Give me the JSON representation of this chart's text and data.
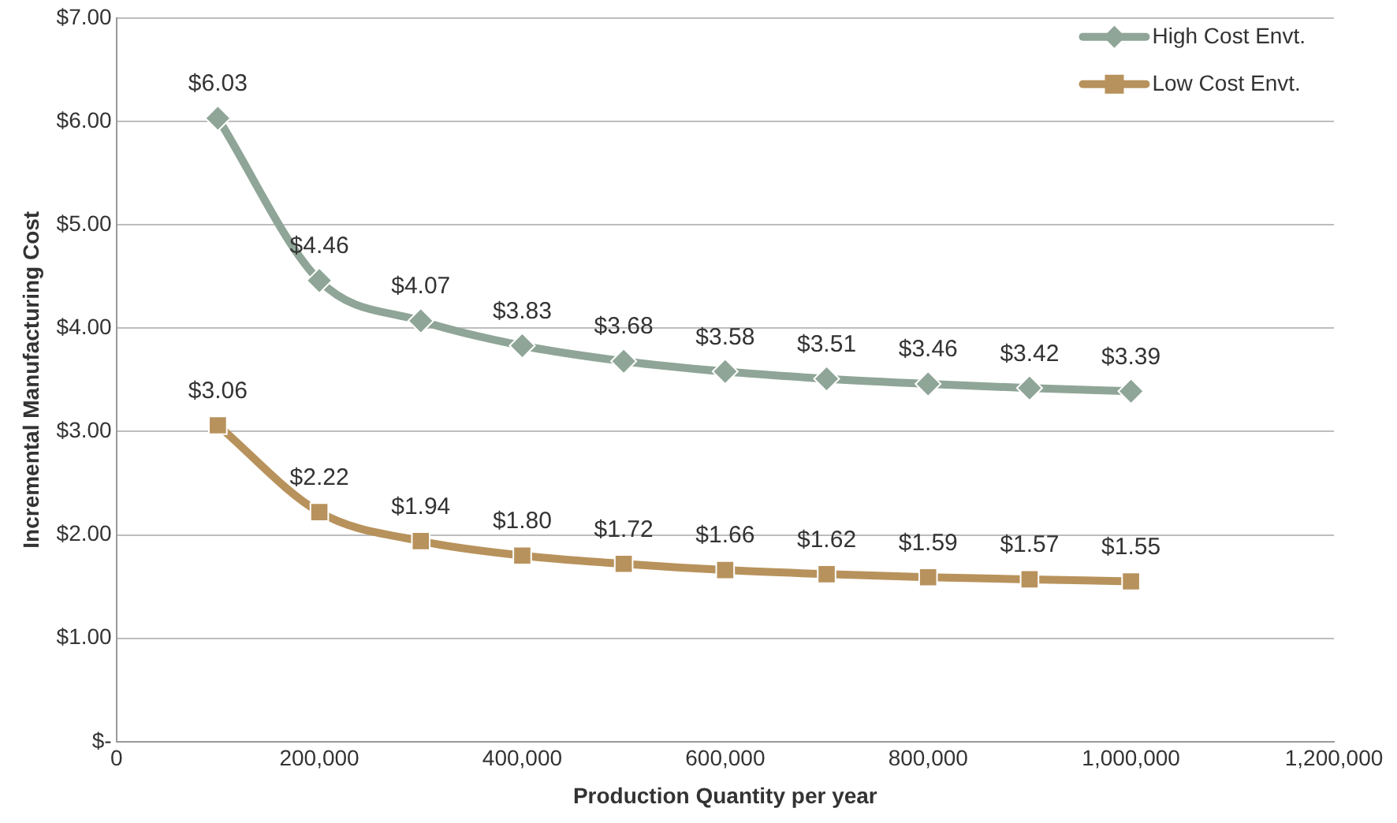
{
  "chart_data": {
    "type": "line",
    "xlabel": "Production Quantity per year",
    "ylabel": "Incremental Manufacturing Cost",
    "x": [
      100000,
      200000,
      300000,
      400000,
      500000,
      600000,
      700000,
      800000,
      900000,
      1000000
    ],
    "xlim": [
      0,
      1200000
    ],
    "xticks": [
      0,
      {
        "value": 200000,
        "label": "200,000"
      },
      {
        "value": 400000,
        "label": "400,000"
      },
      {
        "value": 600000,
        "label": "600,000"
      },
      {
        "value": 800000,
        "label": "800,000"
      },
      {
        "value": 1000000,
        "label": "1,000,000"
      },
      {
        "value": 1200000,
        "label": "1,200,000"
      }
    ],
    "ylim": [
      0,
      7
    ],
    "yticks": [
      {
        "value": 0,
        "label": "$-"
      },
      {
        "value": 1,
        "label": "$1.00"
      },
      {
        "value": 2,
        "label": "$2.00"
      },
      {
        "value": 3,
        "label": "$3.00"
      },
      {
        "value": 4,
        "label": "$4.00"
      },
      {
        "value": 5,
        "label": "$5.00"
      },
      {
        "value": 6,
        "label": "$6.00"
      },
      {
        "value": 7,
        "label": "$7.00"
      }
    ],
    "grid": "y",
    "legend": "top right",
    "line_style": "solid",
    "series": [
      {
        "name": "High Cost Envt.",
        "color": "#8fa597",
        "marker": "diamond",
        "values": [
          6.03,
          4.46,
          4.07,
          3.83,
          3.68,
          3.58,
          3.51,
          3.46,
          3.42,
          3.39
        ],
        "value_labels": [
          "$6.03",
          "$4.46",
          "$4.07",
          "$3.83",
          "$3.68",
          "$3.58",
          "$3.51",
          "$3.46",
          "$3.42",
          "$3.39"
        ]
      },
      {
        "name": "Low Cost Envt.",
        "color": "#b8925c",
        "marker": "square",
        "values": [
          3.06,
          2.22,
          1.94,
          1.8,
          1.72,
          1.66,
          1.62,
          1.59,
          1.57,
          1.55
        ],
        "value_labels": [
          "$3.06",
          "$2.22",
          "$1.94",
          "$1.80",
          "$1.72",
          "$1.66",
          "$1.62",
          "$1.59",
          "$1.57",
          "$1.55"
        ]
      }
    ]
  }
}
